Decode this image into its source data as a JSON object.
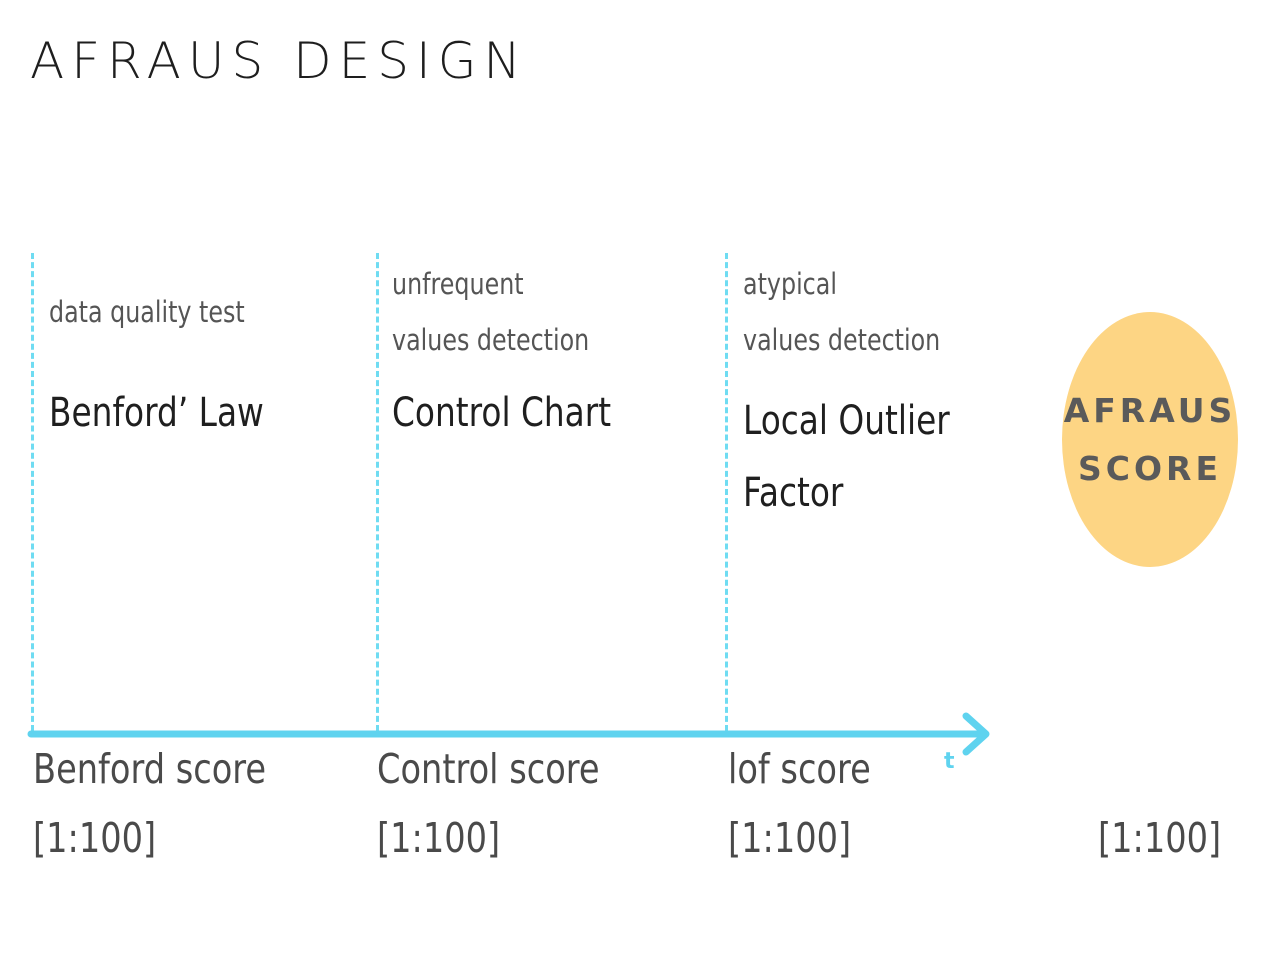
{
  "title": "AFRAUS DESIGN",
  "stages": [
    {
      "subtitle_lines": [
        "data quality test"
      ],
      "method_lines": [
        "Benford’ Law"
      ],
      "score_label": "Benford score",
      "score_range": "[1:100]"
    },
    {
      "subtitle_lines": [
        "unfrequent",
        "values detection"
      ],
      "method_lines": [
        "Control Chart"
      ],
      "score_label": "Control score",
      "score_range": "[1:100]"
    },
    {
      "subtitle_lines": [
        "atypical",
        "values detection"
      ],
      "method_lines": [
        "Local Outlier",
        "Factor"
      ],
      "score_label": "lof score",
      "score_range": "[1:100]"
    }
  ],
  "axis_label": "t",
  "final_score": {
    "lines": [
      "AFRAUS",
      "SCORE"
    ],
    "range": "[1:100]"
  },
  "colors": {
    "axis": "#5fd3ef",
    "dashed_lines": "#6fdcf2",
    "circle": "#fdd584"
  }
}
